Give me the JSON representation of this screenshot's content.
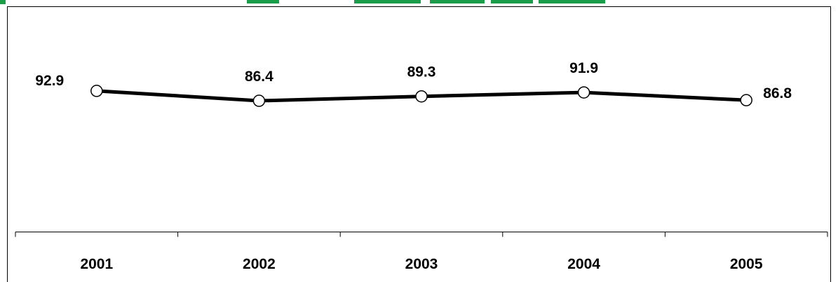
{
  "colors": {
    "title": "#1a9e4a",
    "line": "#000000",
    "frame": "#000000",
    "background": "#ffffff"
  },
  "chart_data": {
    "type": "line",
    "title": "",
    "xlabel": "",
    "ylabel": "",
    "categories": [
      "2001",
      "2002",
      "2003",
      "2004",
      "2005"
    ],
    "series": [
      {
        "values": [
          92.9,
          86.4,
          89.3,
          91.9,
          86.8
        ]
      }
    ],
    "data_labels": [
      "92.9",
      "86.4",
      "89.3",
      "91.9",
      "86.8"
    ],
    "ylim": [
      0,
      150
    ],
    "grid": false,
    "legend": "none",
    "markers": "open-circle"
  }
}
